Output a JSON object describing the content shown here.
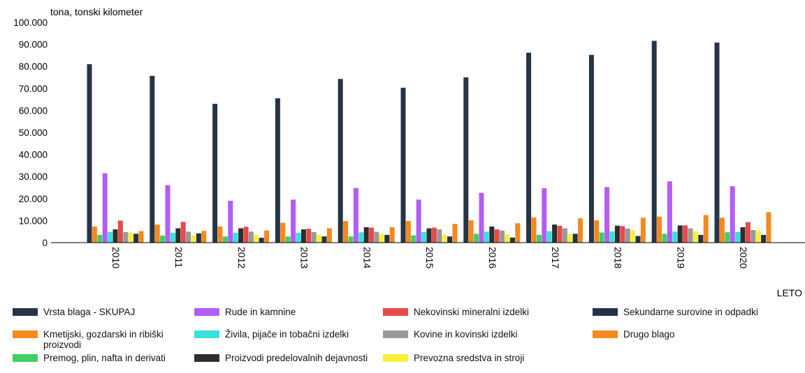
{
  "chart_data": {
    "type": "bar",
    "ylabel": "tona, tonski kilometer",
    "xlabel": "LETO",
    "ylim": [
      0,
      100000
    ],
    "y_ticks": [
      "0",
      "10.000",
      "20.000",
      "30.000",
      "40.000",
      "50.000",
      "60.000",
      "70.000",
      "80.000",
      "90.000",
      "100.000"
    ],
    "categories": [
      "2010",
      "2011",
      "2012",
      "2013",
      "2014",
      "2015",
      "2016",
      "2017",
      "2018",
      "2019",
      "2020"
    ],
    "legend_position": "bottom",
    "series": [
      {
        "name": "Vrsta blaga - SKUPAJ",
        "color": "#263445",
        "values": [
          81000,
          75700,
          63000,
          65500,
          74300,
          70300,
          75000,
          86200,
          85200,
          91600,
          90800
        ]
      },
      {
        "name": "Kmetijski, gozdarski in ribiški proizvodi",
        "color": "#f4891e",
        "values": [
          7300,
          8200,
          7300,
          9000,
          9800,
          9800,
          10100,
          11400,
          10100,
          11800,
          11300
        ]
      },
      {
        "name": "Premog, plin, nafta in derivati",
        "color": "#3fcf64",
        "values": [
          3500,
          3200,
          2800,
          2800,
          2800,
          3300,
          4000,
          3500,
          4600,
          4000,
          4700
        ]
      },
      {
        "name": "Rude in kamnine",
        "color": "#b35df5",
        "values": [
          31500,
          26100,
          19000,
          19500,
          24800,
          19500,
          22600,
          24700,
          25200,
          27800,
          25600
        ]
      },
      {
        "name": "Živila, pijače in tobačni izdelki",
        "color": "#38e0e0",
        "values": [
          4800,
          4500,
          4500,
          4500,
          4700,
          4800,
          5000,
          5200,
          5100,
          5000,
          4800
        ]
      },
      {
        "name": "Proizvodi predelovalnih dejavnosti",
        "color": "#2e2e2e",
        "values": [
          6000,
          6500,
          6500,
          6000,
          7000,
          6500,
          7300,
          8200,
          7700,
          7800,
          7000
        ]
      },
      {
        "name": "Nekovinski mineralni izdelki",
        "color": "#e64a4a",
        "values": [
          10000,
          9400,
          7200,
          6300,
          6800,
          6800,
          6000,
          7600,
          7500,
          7800,
          9300
        ]
      },
      {
        "name": "Kovine in kovinski izdelki",
        "color": "#999999",
        "values": [
          4800,
          5000,
          5000,
          4800,
          4900,
          6000,
          5500,
          6500,
          6400,
          6500,
          5700
        ]
      },
      {
        "name": "Prevozna sredstva in stroji",
        "color": "#f7f040",
        "values": [
          4500,
          3300,
          3600,
          3600,
          4000,
          3500,
          3700,
          4000,
          5500,
          5200,
          5500
        ]
      },
      {
        "name": "Sekundarne surovine in odpadki",
        "color": "#233345",
        "values": [
          4000,
          4200,
          2200,
          2800,
          3500,
          2800,
          2300,
          4000,
          3000,
          3500,
          3500
        ]
      },
      {
        "name": "Drugo blago",
        "color": "#f4891e",
        "values": [
          5200,
          5300,
          5500,
          6500,
          7000,
          8500,
          8800,
          11000,
          11300,
          12500,
          13800
        ]
      }
    ]
  }
}
